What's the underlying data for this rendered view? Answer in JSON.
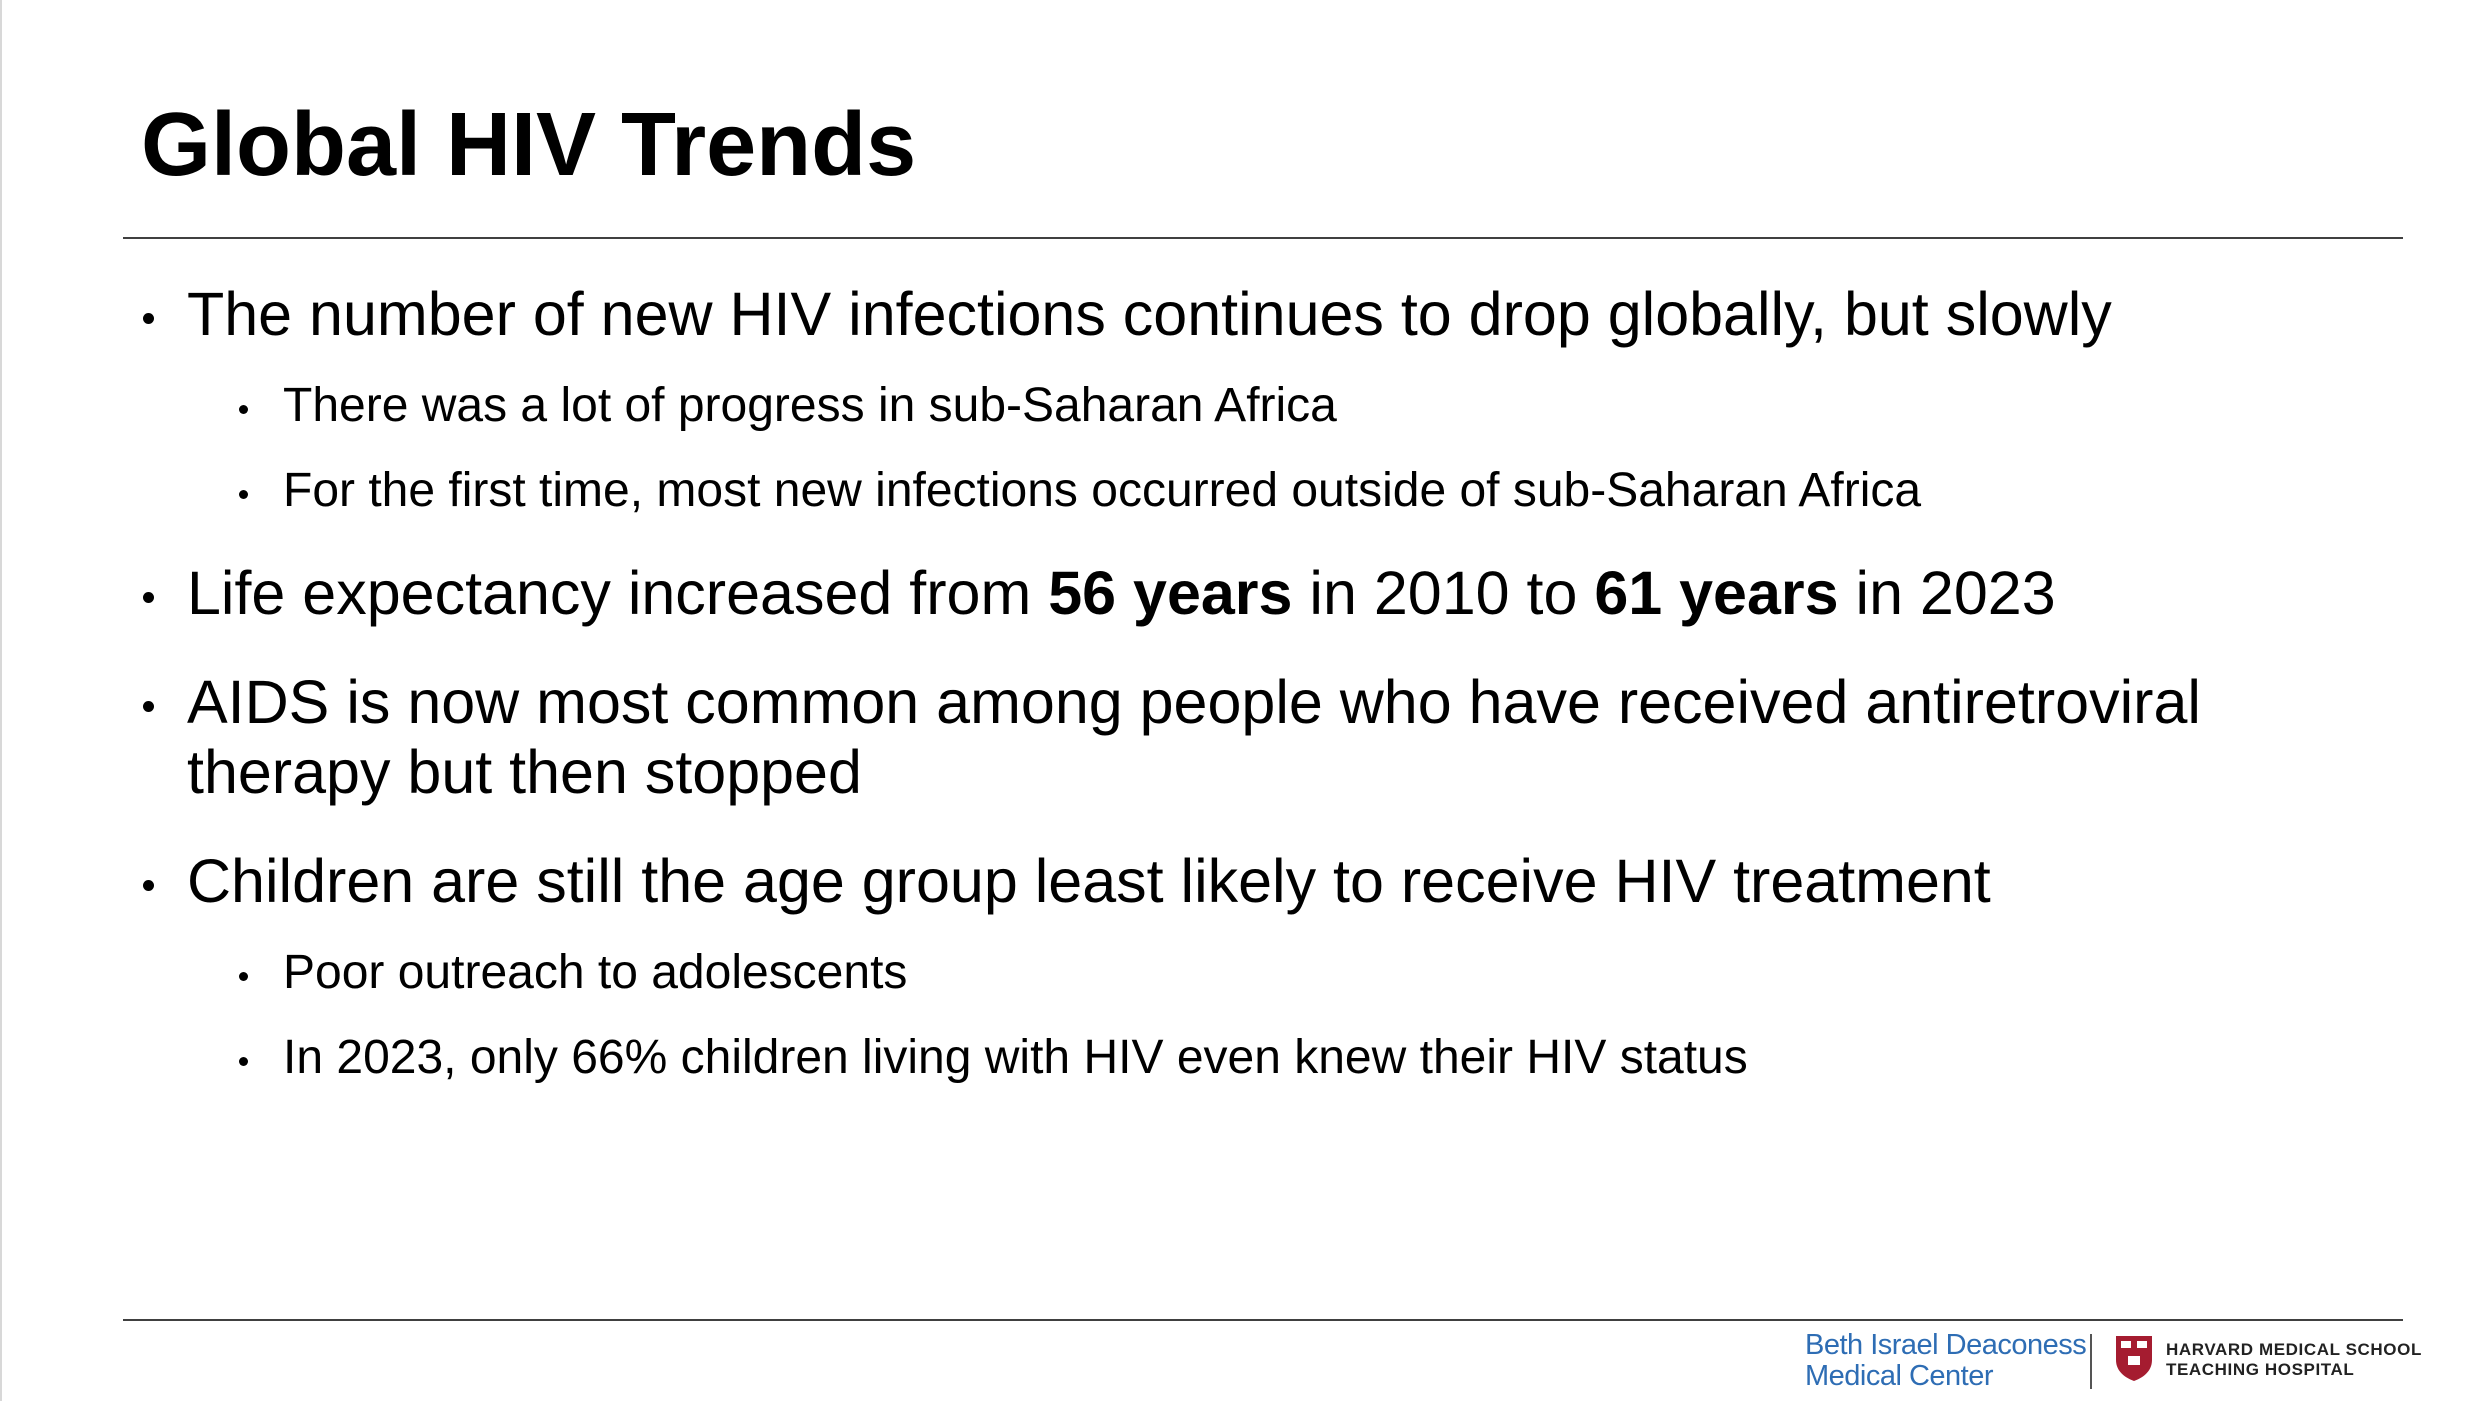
{
  "title": "Global HIV Trends",
  "bullets": [
    {
      "runs": [
        {
          "text": "The number of new HIV infections continues to drop globally, but slowly"
        }
      ],
      "sub": [
        {
          "text": "There was a lot of progress in sub-Saharan Africa"
        },
        {
          "text": "For the first time, most new infections occurred outside of sub-Saharan Africa"
        }
      ]
    },
    {
      "runs": [
        {
          "text": "Life expectancy increased from "
        },
        {
          "text": "56 years",
          "bold": true
        },
        {
          "text": " in 2010 to "
        },
        {
          "text": "61 years",
          "bold": true
        },
        {
          "text": " in 2023"
        }
      ],
      "sub": []
    },
    {
      "runs": [
        {
          "text": "AIDS is now most common among people who have received antiretroviral therapy but then stopped"
        }
      ],
      "sub": []
    },
    {
      "runs": [
        {
          "text": "Children are still the age group least likely to receive HIV treatment"
        }
      ],
      "sub": [
        {
          "text": "Poor outreach to adolescents"
        },
        {
          "text": "In 2023, only 66% children living with HIV even knew their HIV status"
        }
      ]
    }
  ],
  "footer": {
    "logo_left": [
      "Beth Israel Deaconess",
      "Medical Center"
    ],
    "logo_right": [
      "HARVARD MEDICAL SCHOOL",
      "TEACHING HOSPITAL"
    ]
  }
}
